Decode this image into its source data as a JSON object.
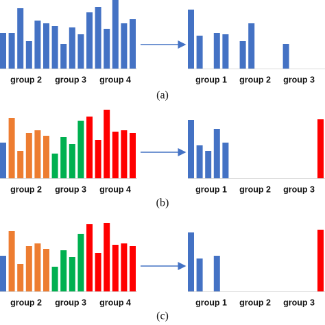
{
  "chart_data": [
    {
      "type": "bar",
      "ylim": [
        0,
        100
      ],
      "color": "#4472c4",
      "values": [
        52,
        52,
        88,
        40,
        70,
        66,
        62,
        36,
        60,
        50,
        82,
        90,
        58,
        100,
        66,
        72
      ],
      "group_labels": [
        "group 2",
        "group 3",
        "group 4"
      ]
    },
    {
      "type": "bar",
      "ylim": [
        0,
        100
      ],
      "color": "#4472c4",
      "values": [
        86,
        48,
        null,
        52,
        50,
        null,
        40,
        66,
        null,
        null,
        null,
        36,
        null,
        null,
        null,
        null
      ],
      "group_labels": [
        "group 1",
        "group 2",
        "group 3"
      ]
    },
    {
      "type": "bar",
      "ylim": [
        0,
        100
      ],
      "values": [
        52,
        88,
        40,
        66,
        70,
        62,
        36,
        60,
        50,
        84,
        90,
        56,
        100,
        68,
        70,
        66
      ],
      "colors": [
        "#4472c4",
        "#ed7d31",
        "#ed7d31",
        "#ed7d31",
        "#ed7d31",
        "#ed7d31",
        "#00b050",
        "#00b050",
        "#00b050",
        "#00b050",
        "#ff0000",
        "#ff0000",
        "#ff0000",
        "#ff0000",
        "#ff0000",
        "#ff0000"
      ],
      "group_labels": [
        "group 2",
        "group 3",
        "group 4"
      ]
    },
    {
      "type": "bar",
      "ylim": [
        0,
        100
      ],
      "values": [
        85,
        48,
        40,
        72,
        52,
        null,
        null,
        null,
        null,
        null,
        null,
        null,
        null,
        null,
        null,
        86
      ],
      "colors": [
        "#4472c4",
        "#4472c4",
        "#4472c4",
        "#4472c4",
        "#4472c4",
        null,
        null,
        null,
        null,
        null,
        null,
        null,
        null,
        null,
        null,
        "#ff0000"
      ],
      "group_labels": [
        "group 1",
        "group 2",
        "group 3"
      ]
    },
    {
      "type": "bar",
      "ylim": [
        0,
        100
      ],
      "values": [
        52,
        88,
        40,
        66,
        70,
        62,
        36,
        60,
        50,
        84,
        98,
        56,
        100,
        68,
        70,
        66
      ],
      "colors": [
        "#4472c4",
        "#ed7d31",
        "#ed7d31",
        "#ed7d31",
        "#ed7d31",
        "#ed7d31",
        "#00b050",
        "#00b050",
        "#00b050",
        "#00b050",
        "#ff0000",
        "#ff0000",
        "#ff0000",
        "#ff0000",
        "#ff0000",
        "#ff0000"
      ],
      "group_labels": [
        "group 2",
        "group 3",
        "group 4"
      ]
    },
    {
      "type": "bar",
      "ylim": [
        0,
        100
      ],
      "values": [
        86,
        48,
        null,
        52,
        null,
        null,
        null,
        null,
        null,
        null,
        null,
        null,
        null,
        null,
        null,
        90
      ],
      "colors": [
        "#4472c4",
        "#4472c4",
        null,
        "#4472c4",
        null,
        null,
        null,
        null,
        null,
        null,
        null,
        null,
        null,
        null,
        null,
        "#ff0000"
      ],
      "group_labels": [
        "group 1",
        "group 2",
        "group 3"
      ]
    }
  ],
  "captions": [
    "(a)",
    "(b)",
    "(c)"
  ]
}
